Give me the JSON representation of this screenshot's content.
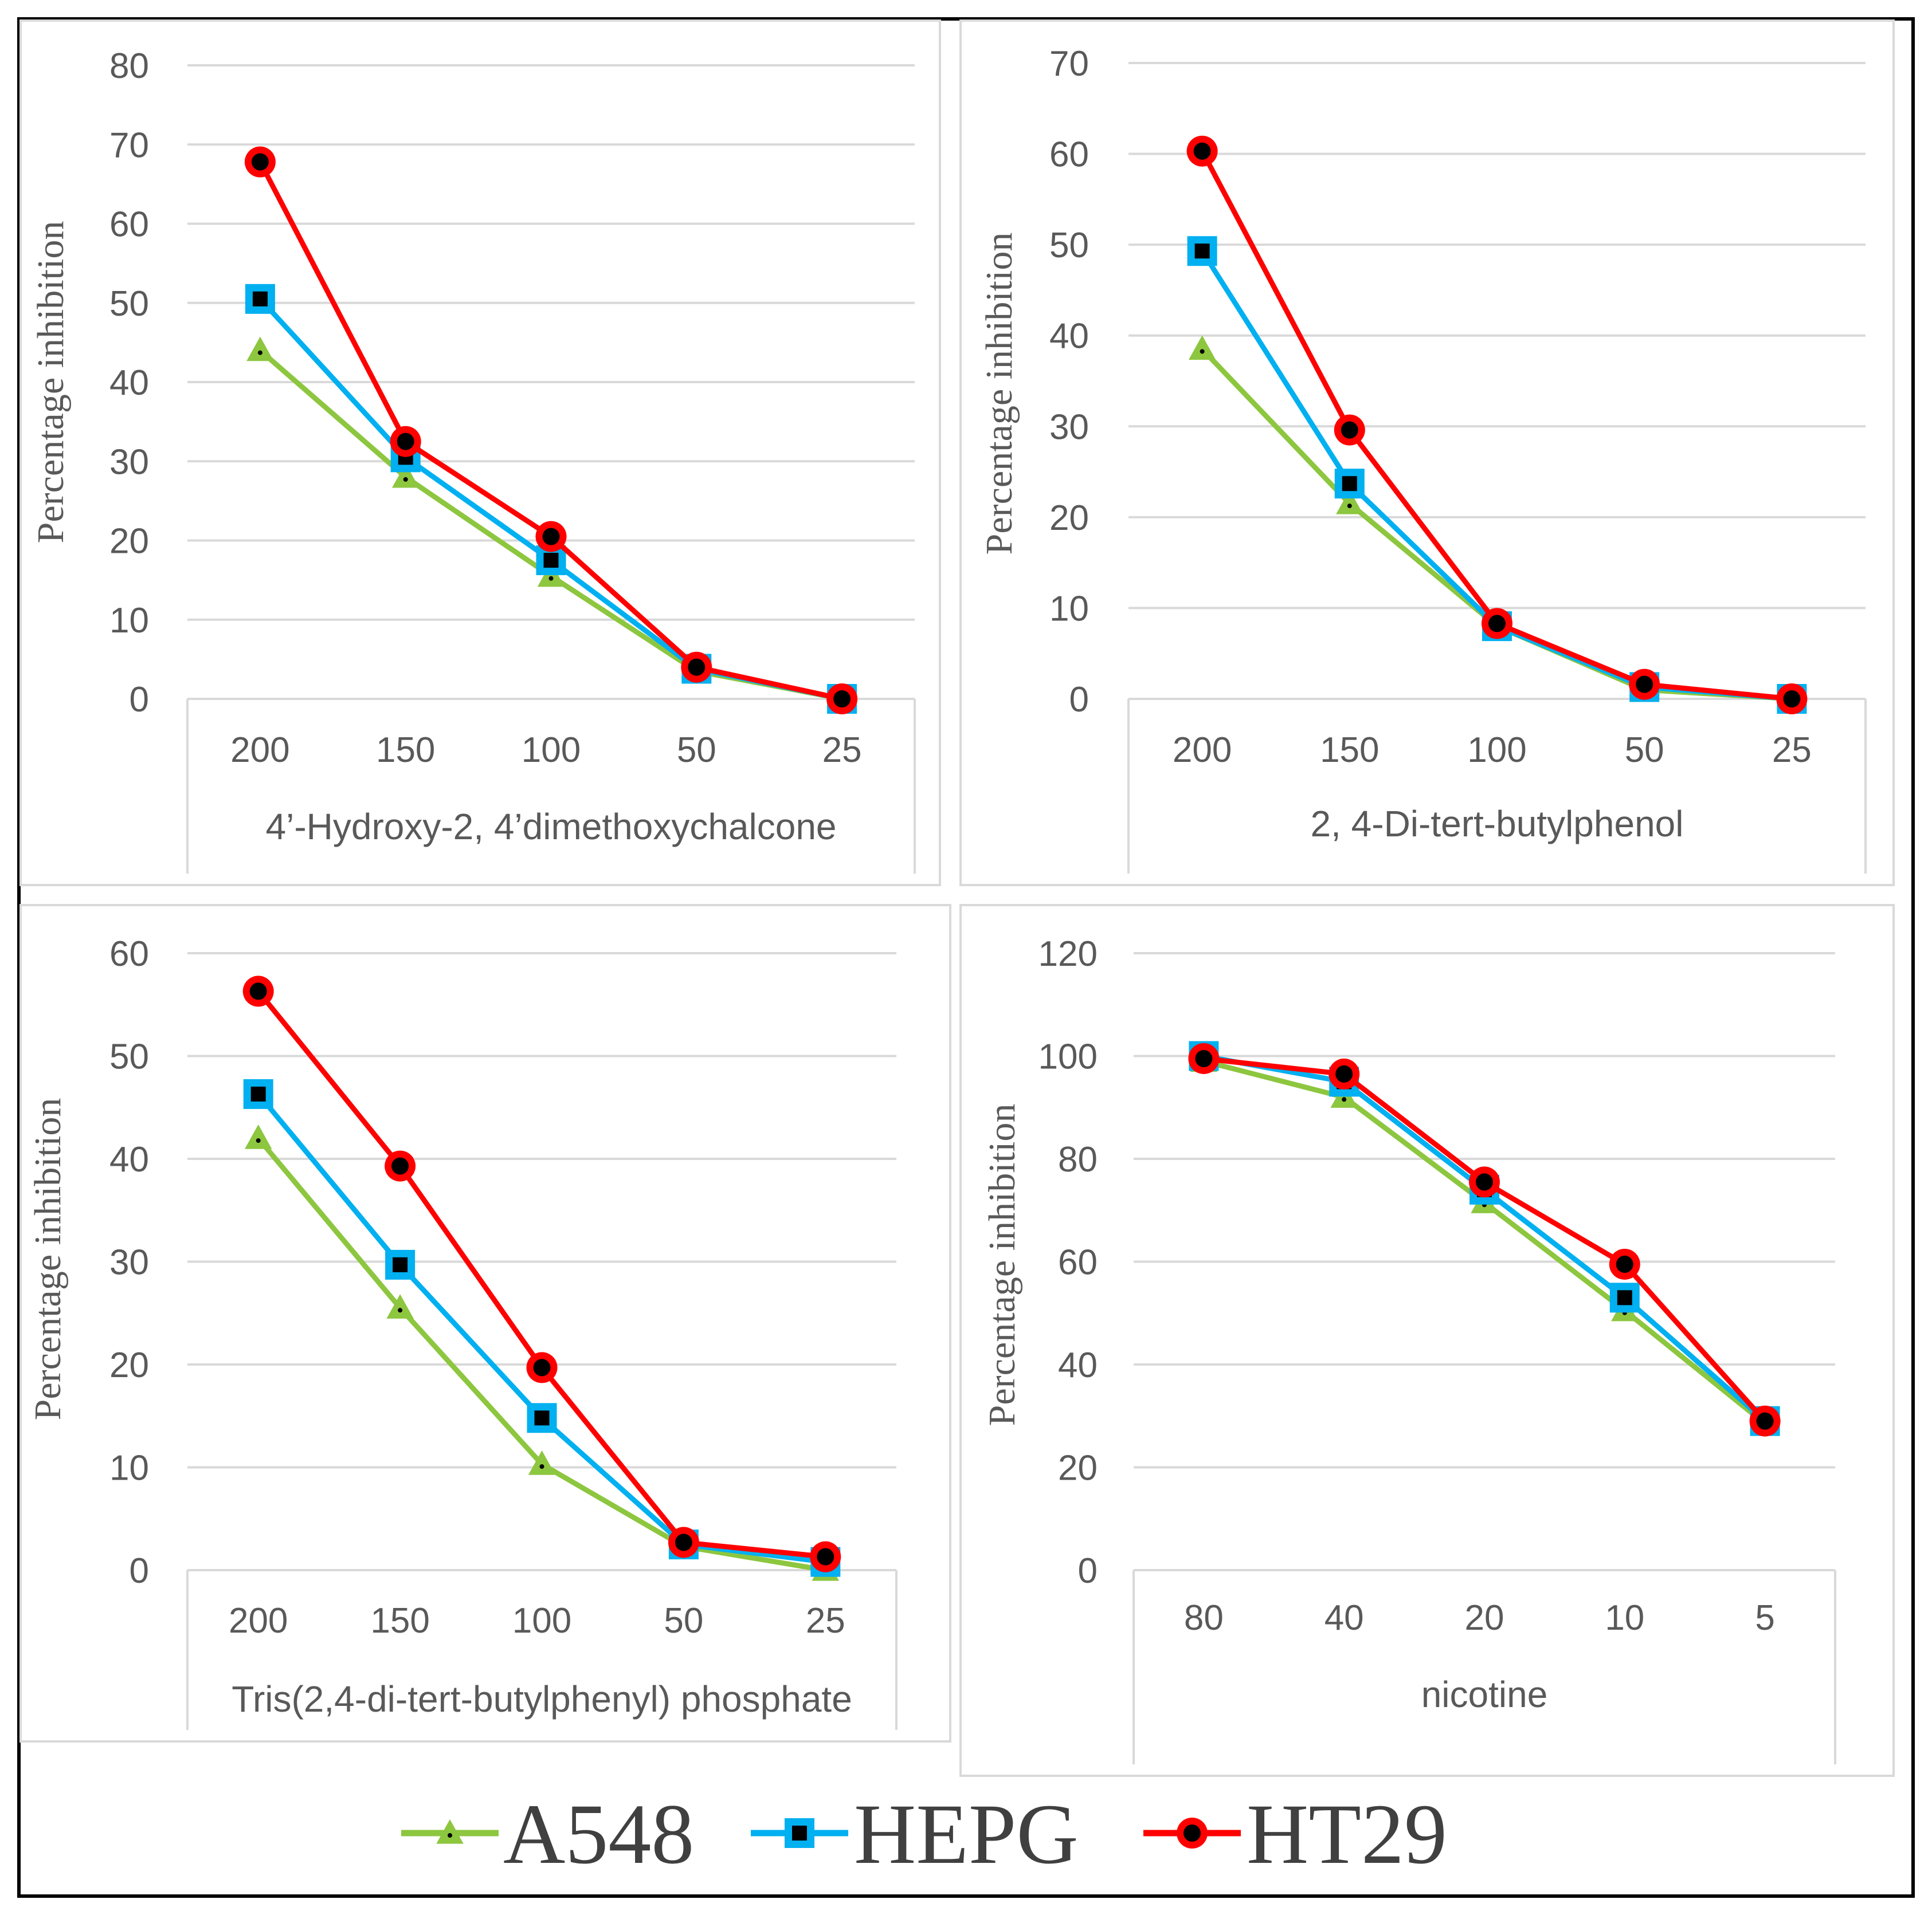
{
  "figure": {
    "legend": [
      {
        "name": "A548",
        "marker": "triangle"
      },
      {
        "name": "HEPG",
        "marker": "square"
      },
      {
        "name": "HT29",
        "marker": "circle"
      }
    ]
  },
  "colors": {
    "A548": "#8dc63f",
    "HEPG": "#00b0f0",
    "HT29": "#ff0000",
    "marker_center": "#000000",
    "grid": "#d9d9d9",
    "text": "#595959"
  },
  "chart_data": [
    {
      "type": "line",
      "title": "4’-Hydroxy-2, 4’dimethoxychalcone",
      "xlabel": "4’-Hydroxy-2, 4’dimethoxychalcone",
      "ylabel": "Percentage inhibition",
      "categories": [
        "200",
        "150",
        "100",
        "50",
        "25"
      ],
      "ylim": [
        0,
        80
      ],
      "yticks": [
        0,
        10,
        20,
        30,
        40,
        50,
        60,
        70,
        80
      ],
      "grid": true,
      "series": [
        {
          "name": "A548",
          "values": [
            44,
            28,
            15.5,
            3.5,
            0
          ]
        },
        {
          "name": "HEPG",
          "values": [
            50.5,
            30.5,
            17.5,
            3.8,
            0
          ]
        },
        {
          "name": "HT29",
          "values": [
            67.8,
            32.5,
            20.5,
            4,
            0
          ]
        }
      ]
    },
    {
      "type": "line",
      "title": "2, 4-Di-tert-butylphenol",
      "xlabel": "2, 4-Di-tert-butylphenol",
      "ylabel": "Percentage inhibition",
      "categories": [
        "200",
        "150",
        "100",
        "50",
        "25"
      ],
      "ylim": [
        0,
        70
      ],
      "yticks": [
        0,
        10,
        20,
        30,
        40,
        50,
        60,
        70
      ],
      "grid": true,
      "series": [
        {
          "name": "A548",
          "values": [
            38.5,
            21.5,
            8,
            1,
            0
          ]
        },
        {
          "name": "HEPG",
          "values": [
            49.3,
            23.7,
            8,
            1.3,
            0
          ]
        },
        {
          "name": "HT29",
          "values": [
            60.3,
            29.6,
            8.3,
            1.6,
            0
          ]
        }
      ]
    },
    {
      "type": "line",
      "title": "Tris(2,4-di-tert-butylphenyl) phosphate",
      "xlabel": "Tris(2,4-di-tert-butylphenyl) phosphate",
      "ylabel": "Percentage inhibition",
      "categories": [
        "200",
        "150",
        "100",
        "50",
        "25"
      ],
      "ylim": [
        0,
        60
      ],
      "yticks": [
        0,
        10,
        20,
        30,
        40,
        50,
        60
      ],
      "grid": true,
      "series": [
        {
          "name": "A548",
          "values": [
            42,
            25.5,
            10.3,
            2.3,
            0
          ]
        },
        {
          "name": "HEPG",
          "values": [
            46.3,
            29.7,
            14.8,
            2.5,
            0.8
          ]
        },
        {
          "name": "HT29",
          "values": [
            56.3,
            39.3,
            19.7,
            2.7,
            1.3
          ]
        }
      ]
    },
    {
      "type": "line",
      "title": "nicotine",
      "xlabel": "nicotine",
      "ylabel": "Percentage inhibition",
      "categories": [
        "80",
        "40",
        "20",
        "10",
        "5"
      ],
      "ylim": [
        0,
        120
      ],
      "yticks": [
        0,
        20,
        40,
        60,
        80,
        100,
        120
      ],
      "grid": true,
      "series": [
        {
          "name": "A548",
          "values": [
            99,
            92,
            71.5,
            50.5,
            28.5
          ]
        },
        {
          "name": "HEPG",
          "values": [
            100,
            95,
            74,
            53,
            29
          ]
        },
        {
          "name": "HT29",
          "values": [
            99.5,
            96.5,
            75.5,
            59.5,
            29
          ]
        }
      ]
    }
  ]
}
